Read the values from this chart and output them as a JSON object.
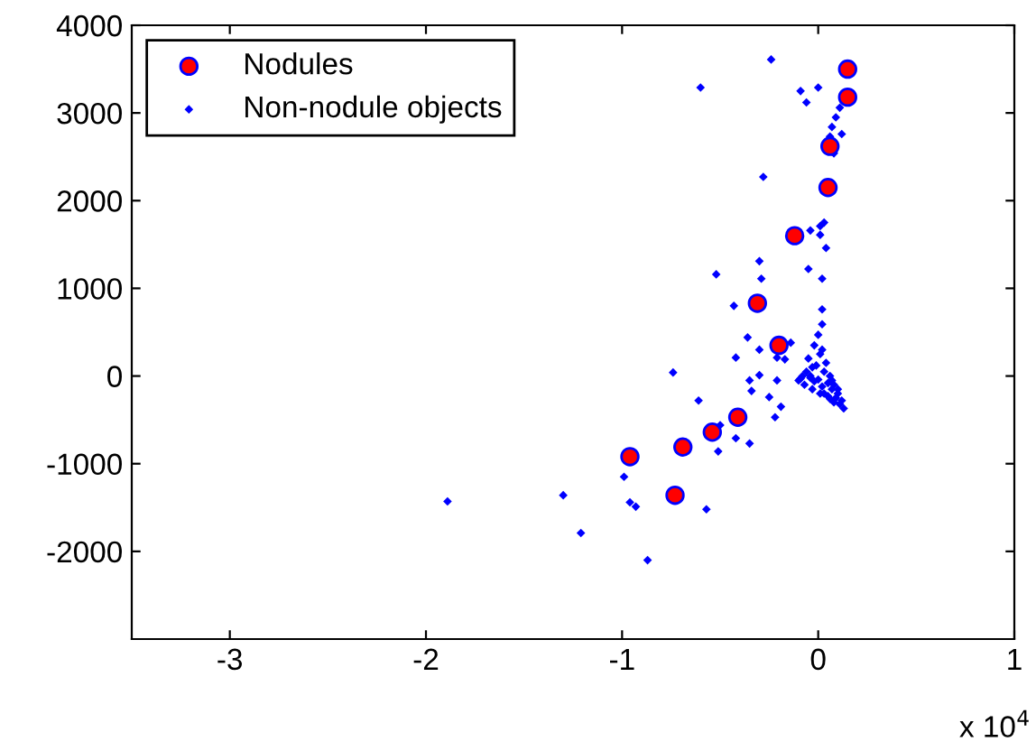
{
  "chart_data": {
    "type": "scatter",
    "xlim": [
      -3.5,
      1
    ],
    "ylim": [
      -3000,
      4000
    ],
    "xticks": [
      -3,
      -2,
      -1,
      0,
      1
    ],
    "yticks": [
      -2000,
      -1000,
      0,
      1000,
      2000,
      3000,
      4000
    ],
    "annotations": [
      "x 10$^{4}$"
    ],
    "legend": "top left",
    "grid": false,
    "series": [
      {
        "name": "Nodules",
        "color": "#ff0000",
        "marker": "circle",
        "x": [
          0.15,
          0.15,
          0.06,
          0.05,
          -0.12,
          -0.31,
          -0.2,
          -0.41,
          -0.54,
          -0.69,
          -0.96,
          -0.73
        ],
        "values": [
          3500,
          3180,
          2620,
          2150,
          1600,
          830,
          350,
          -470,
          -640,
          -810,
          -920,
          -1360
        ]
      },
      {
        "name": "Non-nodule objects",
        "color": "#0000ff",
        "marker": "diamond",
        "x": [
          -0.24,
          -0.6,
          -0.09,
          0,
          -0.06,
          0.11,
          0.09,
          0.07,
          0.06,
          0.12,
          0.08,
          -0.28,
          -0.04,
          0.01,
          0.03,
          0.01,
          0.04,
          -0.52,
          -0.3,
          -0.29,
          -0.05,
          0.02,
          -0.43,
          0.02,
          0.02,
          -0.36,
          -0.3,
          -0.42,
          -0.74,
          -0.3,
          -0.35,
          -0.34,
          -0.61,
          -0.25,
          -0.22,
          -0.19,
          -0.21,
          -0.17,
          -0.14,
          -0.21,
          -0.5,
          -0.42,
          -0.35,
          -0.51,
          -0.99,
          -0.96,
          -0.93,
          -1.3,
          -1.21,
          -0.57,
          -0.87,
          -1.89,
          0,
          -0.02,
          0.02,
          -0.05,
          -0.03,
          0.01,
          0.04,
          -0.08,
          -0.1,
          -0.06,
          -0.04,
          -0.01,
          0.03,
          0.06,
          0.08,
          0.1,
          0.12,
          0.13,
          0.09,
          0.07,
          0.05,
          0.02,
          -0.02,
          -0.07,
          -0.09,
          -0.03,
          0.01,
          0.05,
          0.08,
          0.11,
          0.06,
          0.03,
          0,
          -0.04,
          0.1,
          0.07
        ],
        "values": [
          3610,
          3290,
          3250,
          3290,
          3120,
          3060,
          2950,
          2840,
          2730,
          2760,
          2540,
          2270,
          1660,
          1710,
          1750,
          1610,
          1460,
          1160,
          1310,
          1110,
          1220,
          1110,
          800,
          760,
          590,
          440,
          300,
          210,
          40,
          10,
          -50,
          -170,
          -280,
          -240,
          -470,
          -350,
          210,
          190,
          380,
          -50,
          -560,
          -710,
          -770,
          -860,
          -1150,
          -1440,
          -1490,
          -1360,
          -1790,
          -1520,
          -2100,
          -1430,
          470,
          350,
          300,
          200,
          100,
          250,
          150,
          0,
          -50,
          50,
          -20,
          120,
          50,
          0,
          -100,
          -200,
          -280,
          -370,
          -250,
          -150,
          -80,
          -120,
          -60,
          -100,
          -30,
          -150,
          -200,
          -230,
          -300,
          -320,
          -260,
          -200,
          -40,
          0,
          -150,
          -50
        ]
      }
    ]
  }
}
